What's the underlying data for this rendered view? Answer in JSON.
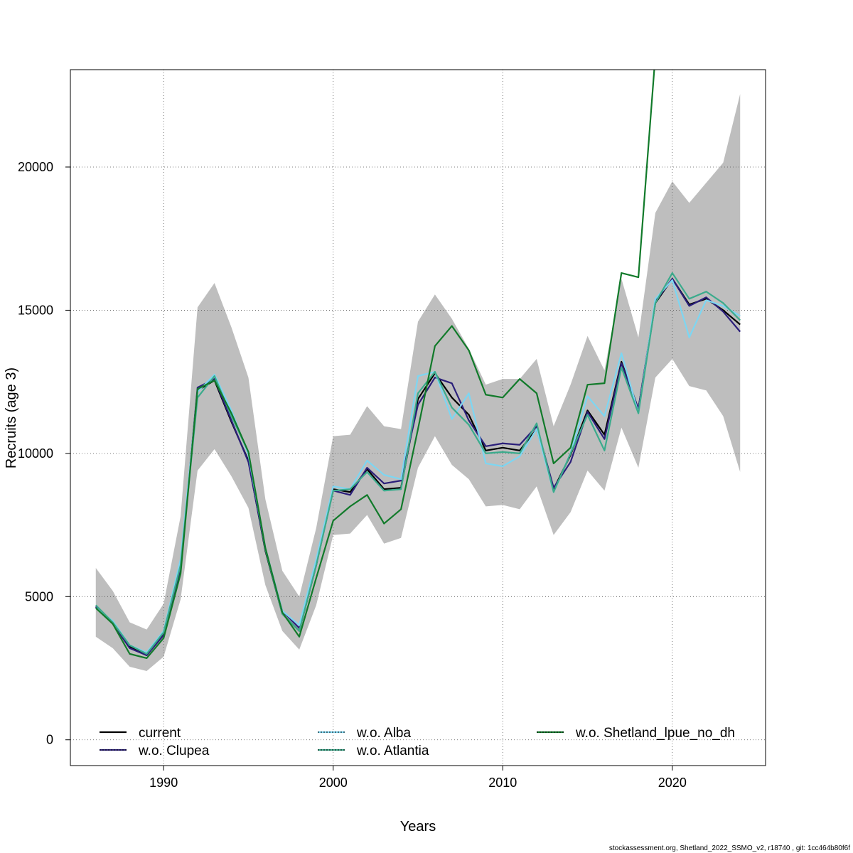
{
  "chart_data": {
    "type": "line",
    "xlabel": "Years",
    "ylabel": "Recruits (age 3)",
    "xlim": [
      1984.5,
      2025.5
    ],
    "ylim": [
      -900,
      23400
    ],
    "xticks": [
      1990,
      2000,
      2010,
      2020
    ],
    "yticks": [
      0,
      5000,
      10000,
      15000,
      20000
    ],
    "grid": true,
    "legend_position": "bottom",
    "footer": "stockassessment.org, Shetland_2022_SSMO_v2, r18740 , git: 1cc464b80f6f",
    "x": [
      1986,
      1987,
      1988,
      1989,
      1990,
      1991,
      1992,
      1993,
      1994,
      1995,
      1996,
      1997,
      1998,
      1999,
      2000,
      2001,
      2002,
      2003,
      2004,
      2005,
      2006,
      2007,
      2008,
      2009,
      2010,
      2011,
      2012,
      2013,
      2014,
      2015,
      2016,
      2017,
      2018,
      2019,
      2020,
      2021,
      2022,
      2023,
      2024
    ],
    "band": {
      "lower": [
        3600,
        3200,
        2550,
        2400,
        2900,
        4900,
        9400,
        10150,
        9200,
        8100,
        5400,
        3800,
        3150,
        4700,
        7150,
        7200,
        7850,
        6850,
        7050,
        9500,
        10600,
        9600,
        9100,
        8150,
        8200,
        8050,
        8850,
        7150,
        7950,
        9400,
        8700,
        10900,
        9500,
        12650,
        13300,
        12350,
        12200,
        11300,
        9350
      ],
      "upper": [
        6000,
        5200,
        4100,
        3850,
        4750,
        7800,
        15100,
        15950,
        14400,
        12650,
        8400,
        5900,
        5000,
        7400,
        10600,
        10650,
        11650,
        10950,
        10850,
        14600,
        15550,
        14700,
        13650,
        12400,
        12600,
        12600,
        13300,
        10950,
        12400,
        14100,
        12900,
        16100,
        14050,
        18400,
        19500,
        18750,
        19450,
        20150,
        22550
      ],
      "color": "#bebebe"
    },
    "series": [
      {
        "name": "current",
        "color": "#000000",
        "dash": "",
        "values": [
          4650,
          4100,
          3250,
          2950,
          3700,
          6100,
          12200,
          12550,
          11100,
          9750,
          6600,
          4400,
          3800,
          6100,
          8750,
          8650,
          9450,
          8750,
          8800,
          11900,
          12800,
          11950,
          11350,
          10100,
          10200,
          10100,
          10850,
          8750,
          9950,
          11500,
          10650,
          13200,
          11550,
          15250,
          16100,
          15200,
          15400,
          15000,
          14500
        ]
      },
      {
        "name": "w.o. Clupea",
        "color": "#2b1f7a",
        "dash": "",
        "values": [
          4650,
          4050,
          3200,
          2950,
          3650,
          6000,
          12300,
          12600,
          11150,
          9700,
          6650,
          4500,
          3900,
          6150,
          8700,
          8550,
          9500,
          8950,
          9050,
          11700,
          12650,
          12450,
          11150,
          10250,
          10350,
          10300,
          10950,
          8800,
          9700,
          11450,
          10500,
          13150,
          11550,
          15300,
          16100,
          15150,
          15450,
          14950,
          14250
        ]
      },
      {
        "name": "w.o. Alba",
        "color": "#7dd6f2",
        "dash": "",
        "values": [
          4600,
          4150,
          3300,
          3050,
          3800,
          6300,
          12150,
          12750,
          11500,
          9950,
          6700,
          4500,
          4000,
          6300,
          8850,
          8750,
          9750,
          9250,
          9100,
          12700,
          12850,
          11200,
          12100,
          9650,
          9550,
          9900,
          10850,
          8650,
          10000,
          12000,
          11300,
          13500,
          11400,
          15400,
          16050,
          14050,
          15350,
          15150,
          14800
        ]
      },
      {
        "name": "w.o. Atlantia",
        "color": "#3bab8c",
        "dash": "",
        "values": [
          4700,
          4100,
          3300,
          3000,
          3750,
          6100,
          11950,
          12700,
          11300,
          10050,
          6650,
          4400,
          3800,
          6100,
          8700,
          8750,
          9350,
          8700,
          8750,
          12100,
          12850,
          11600,
          11000,
          10000,
          10050,
          10000,
          11050,
          8650,
          10000,
          11350,
          10100,
          13000,
          11400,
          15250,
          16300,
          15400,
          15650,
          15250,
          14650
        ]
      },
      {
        "name": "w.o. Shetland_lpue_no_dh",
        "color": "#117a2a",
        "dash": "",
        "values": [
          4600,
          4050,
          3000,
          2850,
          3550,
          5800,
          12250,
          12550,
          11400,
          10050,
          6700,
          4450,
          3600,
          5650,
          7650,
          8150,
          8550,
          7550,
          8050,
          10850,
          13750,
          14450,
          13600,
          12050,
          11950,
          12600,
          12100,
          9650,
          10200,
          12400,
          12450,
          16300,
          16150,
          23900,
          null,
          null,
          null,
          null,
          null
        ]
      }
    ]
  }
}
